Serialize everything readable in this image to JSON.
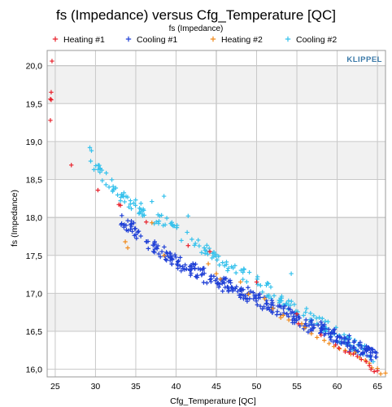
{
  "chart_data": {
    "type": "scatter",
    "title": "fs (Impedance) versus Cfg_Temperature [QC]",
    "subtitle": "fs (Impedance)",
    "xlabel": "Cfg_Temperature [QC]",
    "ylabel": "fs (Impedance)",
    "xlim": [
      24,
      66
    ],
    "ylim": [
      15.9,
      20.2
    ],
    "xticks": [
      "25",
      "30",
      "35",
      "40",
      "45",
      "50",
      "55",
      "60",
      "65"
    ],
    "yticks": [
      "16,0",
      "16,5",
      "17,0",
      "17,5",
      "18,0",
      "18,5",
      "19,0",
      "19,5",
      "20,0"
    ],
    "grid": true,
    "legend_position": "top",
    "logo_text": "KLIPPEL",
    "series": [
      {
        "name": "Heating #1",
        "color": "#e8202a",
        "points": [
          [
            24.6,
            20.06
          ],
          [
            24.5,
            19.65
          ],
          [
            24.4,
            19.56
          ],
          [
            24.5,
            19.55
          ],
          [
            24.4,
            19.28
          ],
          [
            27.0,
            18.69
          ],
          [
            30.3,
            18.36
          ],
          [
            32.9,
            18.17
          ],
          [
            33.1,
            18.16
          ],
          [
            36.3,
            17.94
          ],
          [
            41.5,
            17.63
          ],
          [
            44.2,
            17.55
          ],
          [
            50.0,
            17.15
          ],
          [
            55.0,
            16.73
          ],
          [
            55.2,
            16.6
          ],
          [
            58.0,
            16.45
          ],
          [
            59.8,
            16.32
          ],
          [
            60.2,
            16.28
          ],
          [
            61.0,
            16.23
          ],
          [
            61.5,
            16.22
          ],
          [
            62.0,
            16.2
          ],
          [
            62.5,
            16.17
          ],
          [
            63.0,
            16.13
          ],
          [
            63.6,
            16.1
          ],
          [
            64.0,
            16.05
          ],
          [
            64.2,
            16.0
          ],
          [
            64.6,
            15.97
          ],
          [
            65.0,
            15.98
          ]
        ]
      },
      {
        "name": "Cooling #1",
        "color": "#1f3fd6",
        "points": "generated"
      },
      {
        "name": "Heating #2",
        "color": "#f08a1c",
        "points": [
          [
            33.7,
            17.68
          ],
          [
            34.0,
            17.6
          ],
          [
            37.0,
            17.93
          ],
          [
            38.5,
            17.5
          ],
          [
            44.0,
            17.39
          ],
          [
            45.0,
            17.26
          ],
          [
            45.5,
            17.19
          ],
          [
            48.0,
            17.15
          ],
          [
            49.0,
            16.99
          ],
          [
            51.0,
            16.93
          ],
          [
            52.0,
            16.8
          ],
          [
            53.0,
            16.68
          ],
          [
            53.3,
            16.71
          ],
          [
            54.0,
            16.65
          ],
          [
            55.6,
            16.6
          ],
          [
            56.0,
            16.55
          ],
          [
            56.8,
            16.47
          ],
          [
            57.5,
            16.42
          ],
          [
            58.4,
            16.38
          ],
          [
            59.0,
            16.34
          ],
          [
            59.6,
            16.3
          ],
          [
            60.3,
            16.27
          ],
          [
            61.0,
            16.25
          ],
          [
            61.7,
            16.2
          ],
          [
            62.2,
            16.22
          ],
          [
            62.8,
            16.15
          ],
          [
            63.5,
            16.12
          ],
          [
            64.0,
            16.08
          ],
          [
            64.3,
            16.02
          ],
          [
            65.0,
            16.01
          ],
          [
            65.4,
            15.94
          ],
          [
            66.0,
            15.95
          ]
        ]
      },
      {
        "name": "Cooling #2",
        "color": "#35c1ec",
        "points": "generated"
      }
    ]
  }
}
